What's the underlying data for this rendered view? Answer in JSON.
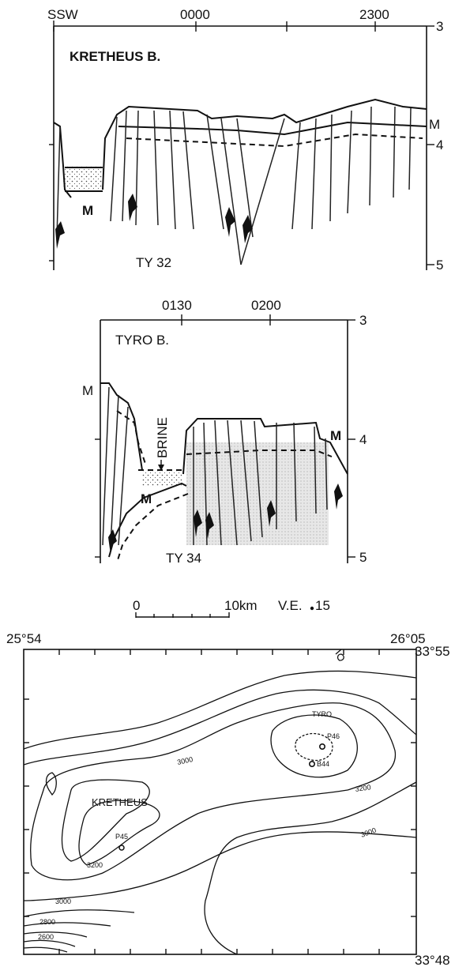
{
  "profile1": {
    "direction": "SSW",
    "times": [
      "0000",
      "2300"
    ],
    "title": "KRETHEUS B.",
    "depths": [
      "3",
      "4",
      "5"
    ],
    "marker_m": "M",
    "line_label": "TY 32"
  },
  "profile2": {
    "times": [
      "0130",
      "0200"
    ],
    "title": "TYRO B.",
    "depths": [
      "3",
      "4",
      "5"
    ],
    "marker_m": "M",
    "brine_label": "BRINE",
    "line_label": "TY 34"
  },
  "scale": {
    "zero": "0",
    "distance": "10km",
    "ve_prefix": "V.E.",
    "ve_value": "15"
  },
  "map": {
    "lon_left": "25°54",
    "lon_right": "26°05",
    "lat_top": "33°55",
    "lat_bottom": "33°48",
    "basins": [
      "KRETHEUS",
      "TYRO"
    ],
    "sites": [
      "P45",
      "P46",
      "B44"
    ],
    "contours": [
      "3000",
      "3200",
      "3200",
      "3000",
      "2800",
      "2600",
      "3000"
    ]
  }
}
